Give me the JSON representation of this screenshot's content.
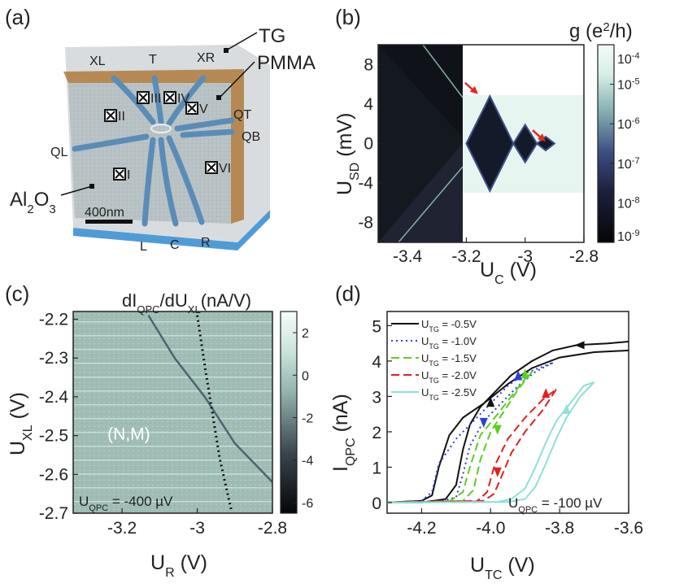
{
  "panels": {
    "a": {
      "label": "(a)"
    },
    "b": {
      "label": "(b)"
    },
    "c": {
      "label": "(c)"
    },
    "d": {
      "label": "(d)"
    }
  },
  "device": {
    "gate_labels": [
      "XL",
      "T",
      "XR",
      "QT",
      "QB",
      "QL",
      "L",
      "C",
      "R"
    ],
    "layers": {
      "tg": "TG",
      "pmma": "PMMA",
      "al2o3_base": "Al",
      "al2o3_sub2": "2",
      "al2o3_mid": "O",
      "al2o3_sub3": "3"
    },
    "contacts": [
      "I",
      "II",
      "III",
      "IV",
      "V",
      "VI"
    ],
    "scalebar": "400nm",
    "colors": {
      "substrate": "#b4bcbf",
      "pmma": "#b07a3c",
      "gates": "#5b8cb8",
      "bottom": "#4f9bd6"
    }
  },
  "chart_data": [
    {
      "panel": "b",
      "type": "heatmap",
      "title": "",
      "xlabel": {
        "base": "U",
        "sub": "C",
        "unit": " (V)"
      },
      "ylabel": {
        "base": "U",
        "sub": "SD",
        "unit": " (mV)"
      },
      "xlim": [
        -3.5,
        -2.8
      ],
      "ylim": [
        -10,
        10
      ],
      "xticks": [
        "-3.4",
        "-3.2",
        "-3",
        "-2.8"
      ],
      "xtick_values": [
        -3.4,
        -3.2,
        -3.0,
        -2.8
      ],
      "yticks": [
        "8",
        "4",
        "0",
        "-4",
        "-8"
      ],
      "ytick_values": [
        8,
        4,
        0,
        -4,
        -8
      ],
      "colorbar": {
        "label_base": "g (e",
        "label_sup": "2",
        "label_end": "/h)",
        "scale": "log",
        "range": [
          1e-09,
          0.0001
        ],
        "ticks": [
          {
            "base": "10",
            "exp": "-4"
          },
          {
            "base": "10",
            "exp": "-5"
          },
          {
            "base": "10",
            "exp": "-6"
          },
          {
            "base": "10",
            "exp": "-7"
          },
          {
            "base": "10",
            "exp": "-8"
          },
          {
            "base": "10",
            "exp": "-9"
          }
        ],
        "tick_values": [
          -4,
          -5,
          -6,
          -7,
          -8,
          -9
        ]
      },
      "diamonds": [
        {
          "uc_left": -3.2,
          "uc_right": -3.04,
          "height_mV": 4.8
        },
        {
          "uc_left": -3.04,
          "uc_right": -2.96,
          "height_mV": 1.9
        },
        {
          "uc_left": -2.96,
          "uc_right": -2.9,
          "height_mV": 0.7
        }
      ],
      "arrows": [
        {
          "uc": -3.16,
          "usd": 5.0
        },
        {
          "uc": -2.93,
          "usd": 0.2
        }
      ]
    },
    {
      "panel": "c",
      "type": "heatmap",
      "title": "",
      "xlabel": {
        "base": "U",
        "sub": "R",
        "unit": " (V)"
      },
      "ylabel": {
        "base": "U",
        "sub": "XL",
        "unit": " (V)"
      },
      "xlim": [
        -3.33,
        -2.8
      ],
      "ylim": [
        -2.7,
        -2.18
      ],
      "xticks": [
        "-3.2",
        "-3",
        "-2.8"
      ],
      "xtick_values": [
        -3.2,
        -3.0,
        -2.8
      ],
      "yticks": [
        "-2.2",
        "-2.3",
        "-2.4",
        "-2.5",
        "-2.6",
        "-2.7"
      ],
      "ytick_values": [
        -2.2,
        -2.3,
        -2.4,
        -2.5,
        -2.6,
        -2.7
      ],
      "colorbar": {
        "label_a": "dI",
        "label_a_sub": "QPC",
        "label_b": "/dU",
        "label_b_sub": "XL",
        "label_unit": "(nA/V)",
        "range": [
          -6.5,
          3
        ],
        "ticks": [
          "2",
          "0",
          "-2",
          "-4",
          "-6"
        ],
        "tick_values": [
          2,
          0,
          -2,
          -4,
          -6
        ]
      },
      "annotation": "(N,M)",
      "annotation_pos": [
        -3.2,
        -2.51
      ],
      "bias": {
        "base": "U",
        "sub": "QPC",
        "value": " = -400 µV"
      },
      "solid_line": [
        [
          -3.13,
          -2.19
        ],
        [
          -3.06,
          -2.3
        ],
        [
          -2.98,
          -2.4
        ],
        [
          -2.9,
          -2.52
        ],
        [
          -2.8,
          -2.62
        ]
      ],
      "dotted_line": [
        [
          -3.0,
          -2.19
        ],
        [
          -2.98,
          -2.32
        ],
        [
          -2.96,
          -2.44
        ],
        [
          -2.94,
          -2.56
        ],
        [
          -2.91,
          -2.69
        ]
      ]
    },
    {
      "panel": "d",
      "type": "line",
      "title": "",
      "xlabel": {
        "base": "U",
        "sub": "TC",
        "unit": " (V)"
      },
      "ylabel": {
        "base": "I",
        "sub": "QPC",
        "unit": " (nA)"
      },
      "xlim": [
        -4.3,
        -3.6
      ],
      "ylim": [
        -0.3,
        5.4
      ],
      "xticks": [
        "-4.2",
        "-4.0",
        "-3.8",
        "-3.6"
      ],
      "xtick_values": [
        -4.2,
        -4.0,
        -3.8,
        -3.6
      ],
      "yticks": [
        "5",
        "4",
        "3",
        "2",
        "1",
        "0"
      ],
      "ytick_values": [
        5,
        4,
        3,
        2,
        1,
        0
      ],
      "bias": {
        "base": "U",
        "sub": "QPC",
        "value": " = -100 µV"
      },
      "series": [
        {
          "name_base": "U",
          "name_sub": "TG",
          "name_value": " = -0.5V",
          "color": "#111111",
          "dash": "",
          "up": [
            [
              -4.3,
              0
            ],
            [
              -4.2,
              0.05
            ],
            [
              -4.17,
              0.2
            ],
            [
              -4.15,
              1.0
            ],
            [
              -4.12,
              1.9
            ],
            [
              -4.08,
              2.4
            ],
            [
              -4.02,
              2.8
            ],
            [
              -3.95,
              3.35
            ],
            [
              -3.88,
              3.8
            ],
            [
              -3.8,
              4.1
            ],
            [
              -3.7,
              4.25
            ],
            [
              -3.6,
              4.3
            ]
          ],
          "down": [
            [
              -3.6,
              4.55
            ],
            [
              -3.66,
              4.5
            ],
            [
              -3.75,
              4.45
            ],
            [
              -3.82,
              4.3
            ],
            [
              -3.88,
              4.0
            ],
            [
              -3.94,
              3.6
            ],
            [
              -3.99,
              3.1
            ],
            [
              -4.03,
              2.7
            ],
            [
              -4.06,
              2.2
            ],
            [
              -4.08,
              1.5
            ],
            [
              -4.1,
              0.5
            ],
            [
              -4.13,
              0.1
            ],
            [
              -4.2,
              0
            ],
            [
              -4.3,
              0
            ]
          ]
        },
        {
          "name_base": "U",
          "name_sub": "TG",
          "name_value": " = -1.0V",
          "color": "#2a3ee0",
          "dash": "2,4",
          "up": [
            [
              -4.3,
              0
            ],
            [
              -4.2,
              0.05
            ],
            [
              -4.17,
              0.3
            ],
            [
              -4.15,
              1.1
            ],
            [
              -4.1,
              1.8
            ],
            [
              -4.05,
              2.3
            ],
            [
              -4.0,
              2.8
            ],
            [
              -3.95,
              3.3
            ],
            [
              -3.9,
              3.65
            ],
            [
              -3.82,
              3.95
            ]
          ],
          "down": [
            [
              -3.82,
              3.95
            ],
            [
              -3.87,
              3.7
            ],
            [
              -3.92,
              3.3
            ],
            [
              -3.97,
              2.8
            ],
            [
              -4.02,
              2.3
            ],
            [
              -4.06,
              1.6
            ],
            [
              -4.08,
              0.8
            ],
            [
              -4.1,
              0.15
            ],
            [
              -4.15,
              0.02
            ],
            [
              -4.3,
              0
            ]
          ]
        },
        {
          "name_base": "U",
          "name_sub": "TG",
          "name_value": " = -1.5V",
          "color": "#5ad020",
          "dash": "10,5",
          "up": [
            [
              -4.3,
              0
            ],
            [
              -4.12,
              0.03
            ],
            [
              -4.08,
              0.3
            ],
            [
              -4.06,
              1.0
            ],
            [
              -4.03,
              1.9
            ],
            [
              -3.98,
              2.5
            ],
            [
              -3.94,
              3.0
            ],
            [
              -3.9,
              3.5
            ],
            [
              -3.88,
              3.7
            ]
          ],
          "down": [
            [
              -3.88,
              3.7
            ],
            [
              -3.92,
              3.2
            ],
            [
              -3.96,
              2.6
            ],
            [
              -4.0,
              2.0
            ],
            [
              -4.03,
              1.2
            ],
            [
              -4.05,
              0.35
            ],
            [
              -4.08,
              0.05
            ],
            [
              -4.3,
              0
            ]
          ]
        },
        {
          "name_base": "U",
          "name_sub": "TG",
          "name_value": " = -2.0V",
          "color": "#e02020",
          "dash": "10,5",
          "up": [
            [
              -4.3,
              0
            ],
            [
              -4.04,
              0.03
            ],
            [
              -4.01,
              0.3
            ],
            [
              -3.99,
              1.0
            ],
            [
              -3.95,
              1.8
            ],
            [
              -3.9,
              2.4
            ],
            [
              -3.85,
              2.9
            ],
            [
              -3.81,
              3.2
            ]
          ],
          "down": [
            [
              -3.81,
              3.2
            ],
            [
              -3.85,
              2.6
            ],
            [
              -3.9,
              2.0
            ],
            [
              -3.94,
              1.4
            ],
            [
              -3.97,
              0.7
            ],
            [
              -3.99,
              0.25
            ],
            [
              -4.02,
              0.05
            ],
            [
              -4.3,
              0
            ]
          ]
        },
        {
          "name_base": "U",
          "name_sub": "TG",
          "name_value": " = -2.5V",
          "color": "#8ee0d8",
          "dash": "",
          "up": [
            [
              -4.3,
              0
            ],
            [
              -3.98,
              0.02
            ],
            [
              -3.94,
              0.1
            ],
            [
              -3.9,
              0.4
            ],
            [
              -3.87,
              1.0
            ],
            [
              -3.84,
              1.7
            ],
            [
              -3.81,
              2.3
            ],
            [
              -3.77,
              2.8
            ],
            [
              -3.73,
              3.3
            ],
            [
              -3.7,
              3.4
            ]
          ],
          "down": [
            [
              -3.7,
              3.4
            ],
            [
              -3.74,
              3.0
            ],
            [
              -3.78,
              2.4
            ],
            [
              -3.81,
              1.8
            ],
            [
              -3.84,
              1.1
            ],
            [
              -3.87,
              0.45
            ],
            [
              -3.9,
              0.1
            ],
            [
              -3.95,
              0.02
            ],
            [
              -4.3,
              0
            ]
          ]
        }
      ],
      "arrows": [
        {
          "x": -3.74,
          "y": 4.45,
          "dir": "left",
          "color": "#111111"
        },
        {
          "x": -4.0,
          "y": 2.8,
          "dir": "up",
          "color": "#111111"
        },
        {
          "x": -3.92,
          "y": 3.55,
          "dir": "up",
          "color": "#2a3ee0"
        },
        {
          "x": -4.02,
          "y": 2.3,
          "dir": "down",
          "color": "#2a3ee0"
        },
        {
          "x": -3.9,
          "y": 3.6,
          "dir": "up",
          "color": "#5ad020"
        },
        {
          "x": -3.98,
          "y": 2.1,
          "dir": "down",
          "color": "#5ad020"
        },
        {
          "x": -3.84,
          "y": 3.05,
          "dir": "up",
          "color": "#e02020"
        },
        {
          "x": -3.98,
          "y": 0.9,
          "dir": "down",
          "color": "#e02020"
        },
        {
          "x": -3.78,
          "y": 2.6,
          "dir": "up",
          "color": "#8ee0d8"
        }
      ]
    }
  ]
}
